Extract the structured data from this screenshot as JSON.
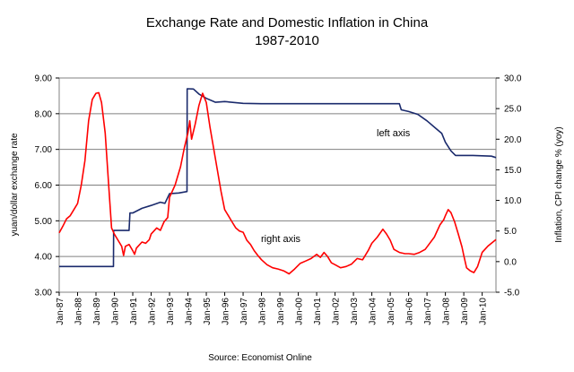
{
  "chart_data": {
    "type": "line",
    "title": "Exchange Rate and Domestic Inflation in China",
    "subtitle": "1987-2010",
    "source": "Source: Economist Online",
    "left_axis": {
      "label": "yuan/dollar exchange rate",
      "ylim": [
        3.0,
        9.0
      ],
      "ticks": [
        "3.00",
        "4.00",
        "5.00",
        "6.00",
        "7.00",
        "8.00",
        "9.00"
      ],
      "tick_values": [
        3,
        4,
        5,
        6,
        7,
        8,
        9
      ]
    },
    "right_axis": {
      "label": "Inflation, CPI change % (yoy)",
      "ylim": [
        -5.0,
        30.0
      ],
      "ticks": [
        "-5.0",
        "0.0",
        "5.0",
        "10.0",
        "15.0",
        "20.0",
        "25.0",
        "30.0"
      ],
      "tick_values": [
        -5,
        0,
        5,
        10,
        15,
        20,
        25,
        30
      ]
    },
    "x_axis": {
      "range": [
        1987.0,
        2010.75
      ],
      "tick_labels": [
        "Jan-87",
        "Jan-88",
        "Jan-89",
        "Jan-90",
        "Jan-91",
        "Jan-92",
        "Jan-93",
        "Jan-94",
        "Jan-95",
        "Jan-96",
        "Jan-97",
        "Jan-98",
        "Jan-99",
        "Jan-00",
        "Jan-01",
        "Jan-02",
        "Jan-03",
        "Jan-04",
        "Jan-05",
        "Jan-06",
        "Jan-07",
        "Jan-08",
        "Jan-09",
        "Jan-10"
      ],
      "tick_values": [
        1987,
        1988,
        1989,
        1990,
        1991,
        1992,
        1993,
        1994,
        1995,
        1996,
        1997,
        1998,
        1999,
        2000,
        2001,
        2002,
        2003,
        2004,
        2005,
        2006,
        2007,
        2008,
        2009,
        2010
      ]
    },
    "grid": true,
    "annotations": {
      "left": "left axis",
      "right": "right axis"
    },
    "series": [
      {
        "axis": "left",
        "color": "#1a2a6c",
        "points": [
          [
            1987.0,
            3.72
          ],
          [
            1989.95,
            3.72
          ],
          [
            1989.96,
            4.73
          ],
          [
            1990.8,
            4.73
          ],
          [
            1990.85,
            5.22
          ],
          [
            1991.0,
            5.22
          ],
          [
            1991.5,
            5.35
          ],
          [
            1992.0,
            5.43
          ],
          [
            1992.5,
            5.52
          ],
          [
            1992.75,
            5.49
          ],
          [
            1993.0,
            5.76
          ],
          [
            1993.5,
            5.78
          ],
          [
            1993.95,
            5.82
          ],
          [
            1993.96,
            8.7
          ],
          [
            1994.3,
            8.69
          ],
          [
            1994.6,
            8.55
          ],
          [
            1995.0,
            8.43
          ],
          [
            1995.5,
            8.32
          ],
          [
            1996.0,
            8.34
          ],
          [
            1997.0,
            8.29
          ],
          [
            1998.0,
            8.28
          ],
          [
            1999.0,
            8.28
          ],
          [
            2000.0,
            8.28
          ],
          [
            2001.0,
            8.28
          ],
          [
            2002.0,
            8.28
          ],
          [
            2003.0,
            8.28
          ],
          [
            2004.0,
            8.28
          ],
          [
            2005.5,
            8.28
          ],
          [
            2005.6,
            8.11
          ],
          [
            2006.0,
            8.06
          ],
          [
            2006.5,
            7.98
          ],
          [
            2007.0,
            7.8
          ],
          [
            2007.5,
            7.58
          ],
          [
            2007.8,
            7.45
          ],
          [
            2008.0,
            7.2
          ],
          [
            2008.3,
            6.96
          ],
          [
            2008.55,
            6.83
          ],
          [
            2009.0,
            6.83
          ],
          [
            2009.5,
            6.83
          ],
          [
            2010.0,
            6.82
          ],
          [
            2010.5,
            6.81
          ],
          [
            2010.75,
            6.77
          ]
        ]
      },
      {
        "axis": "right",
        "color": "#ff0000",
        "points": [
          [
            1987.0,
            4.7
          ],
          [
            1987.2,
            5.8
          ],
          [
            1987.4,
            7.0
          ],
          [
            1987.6,
            7.5
          ],
          [
            1987.8,
            8.5
          ],
          [
            1988.0,
            9.5
          ],
          [
            1988.2,
            12.5
          ],
          [
            1988.4,
            16.5
          ],
          [
            1988.6,
            23.0
          ],
          [
            1988.8,
            26.5
          ],
          [
            1989.0,
            27.5
          ],
          [
            1989.15,
            27.6
          ],
          [
            1989.3,
            26.0
          ],
          [
            1989.5,
            21.0
          ],
          [
            1989.7,
            12.0
          ],
          [
            1989.85,
            5.5
          ],
          [
            1990.0,
            4.5
          ],
          [
            1990.2,
            3.5
          ],
          [
            1990.4,
            2.5
          ],
          [
            1990.5,
            1.0
          ],
          [
            1990.6,
            2.5
          ],
          [
            1990.8,
            2.8
          ],
          [
            1991.0,
            1.8
          ],
          [
            1991.1,
            1.2
          ],
          [
            1991.2,
            2.2
          ],
          [
            1991.5,
            3.2
          ],
          [
            1991.7,
            3.0
          ],
          [
            1991.9,
            3.6
          ],
          [
            1992.0,
            4.5
          ],
          [
            1992.3,
            5.5
          ],
          [
            1992.5,
            5.1
          ],
          [
            1992.7,
            6.5
          ],
          [
            1992.9,
            7.2
          ],
          [
            1993.0,
            10.5
          ],
          [
            1993.3,
            12.5
          ],
          [
            1993.6,
            15.5
          ],
          [
            1993.8,
            18.5
          ],
          [
            1994.0,
            21.0
          ],
          [
            1994.1,
            23.0
          ],
          [
            1994.2,
            20.0
          ],
          [
            1994.4,
            22.5
          ],
          [
            1994.6,
            25.5
          ],
          [
            1994.8,
            27.5
          ],
          [
            1995.0,
            26.0
          ],
          [
            1995.2,
            22.0
          ],
          [
            1995.4,
            18.5
          ],
          [
            1995.6,
            15.0
          ],
          [
            1995.8,
            11.5
          ],
          [
            1996.0,
            8.5
          ],
          [
            1996.2,
            7.5
          ],
          [
            1996.4,
            6.5
          ],
          [
            1996.6,
            5.5
          ],
          [
            1996.8,
            5.0
          ],
          [
            1997.0,
            4.8
          ],
          [
            1997.2,
            3.5
          ],
          [
            1997.4,
            2.8
          ],
          [
            1997.6,
            1.8
          ],
          [
            1997.8,
            1.0
          ],
          [
            1998.0,
            0.3
          ],
          [
            1998.3,
            -0.5
          ],
          [
            1998.6,
            -1.0
          ],
          [
            1998.9,
            -1.2
          ],
          [
            1999.2,
            -1.5
          ],
          [
            1999.5,
            -2.0
          ],
          [
            1999.8,
            -1.2
          ],
          [
            2000.1,
            -0.3
          ],
          [
            2000.4,
            0.1
          ],
          [
            2000.7,
            0.5
          ],
          [
            2001.0,
            1.2
          ],
          [
            2001.2,
            0.7
          ],
          [
            2001.4,
            1.5
          ],
          [
            2001.6,
            0.8
          ],
          [
            2001.8,
            -0.2
          ],
          [
            2002.0,
            -0.5
          ],
          [
            2002.3,
            -1.0
          ],
          [
            2002.6,
            -0.8
          ],
          [
            2002.9,
            -0.4
          ],
          [
            2003.2,
            0.5
          ],
          [
            2003.5,
            0.3
          ],
          [
            2003.8,
            1.8
          ],
          [
            2004.0,
            3.0
          ],
          [
            2004.3,
            4.0
          ],
          [
            2004.6,
            5.3
          ],
          [
            2004.8,
            4.5
          ],
          [
            2005.0,
            3.5
          ],
          [
            2005.2,
            2.0
          ],
          [
            2005.5,
            1.5
          ],
          [
            2005.8,
            1.3
          ],
          [
            2006.0,
            1.3
          ],
          [
            2006.3,
            1.2
          ],
          [
            2006.6,
            1.5
          ],
          [
            2006.9,
            2.0
          ],
          [
            2007.1,
            2.8
          ],
          [
            2007.4,
            4.0
          ],
          [
            2007.7,
            6.0
          ],
          [
            2007.9,
            6.8
          ],
          [
            2008.0,
            7.5
          ],
          [
            2008.15,
            8.5
          ],
          [
            2008.3,
            8.0
          ],
          [
            2008.5,
            6.5
          ],
          [
            2008.7,
            4.5
          ],
          [
            2008.9,
            2.4
          ],
          [
            2009.0,
            1.0
          ],
          [
            2009.15,
            -1.0
          ],
          [
            2009.35,
            -1.5
          ],
          [
            2009.55,
            -1.8
          ],
          [
            2009.75,
            -0.8
          ],
          [
            2010.0,
            1.5
          ],
          [
            2010.3,
            2.5
          ],
          [
            2010.5,
            3.0
          ],
          [
            2010.75,
            3.6
          ]
        ]
      }
    ]
  }
}
